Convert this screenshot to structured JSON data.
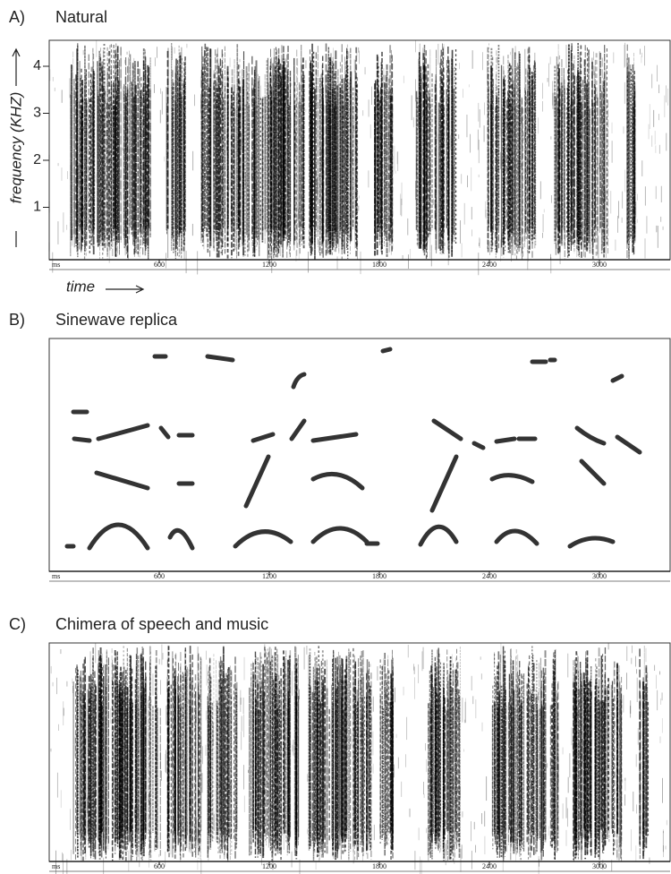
{
  "panels": [
    {
      "label": "A)",
      "title": "Natural",
      "x_unit": "ms",
      "x_ticks": [
        600,
        1200,
        1800,
        2400,
        3000
      ],
      "y_title": "frequency (KHZ)",
      "y_ticks": [
        1,
        2,
        3,
        4
      ],
      "x_title": "time"
    },
    {
      "label": "B)",
      "title": "Sinewave replica",
      "x_unit": "ms",
      "x_ticks": [
        600,
        1200,
        1800,
        2400,
        3000
      ]
    },
    {
      "label": "C)",
      "title": "Chimera of speech and music",
      "x_unit": "ms",
      "x_ticks": [
        600,
        1200,
        1800,
        2400,
        3000
      ]
    }
  ]
}
